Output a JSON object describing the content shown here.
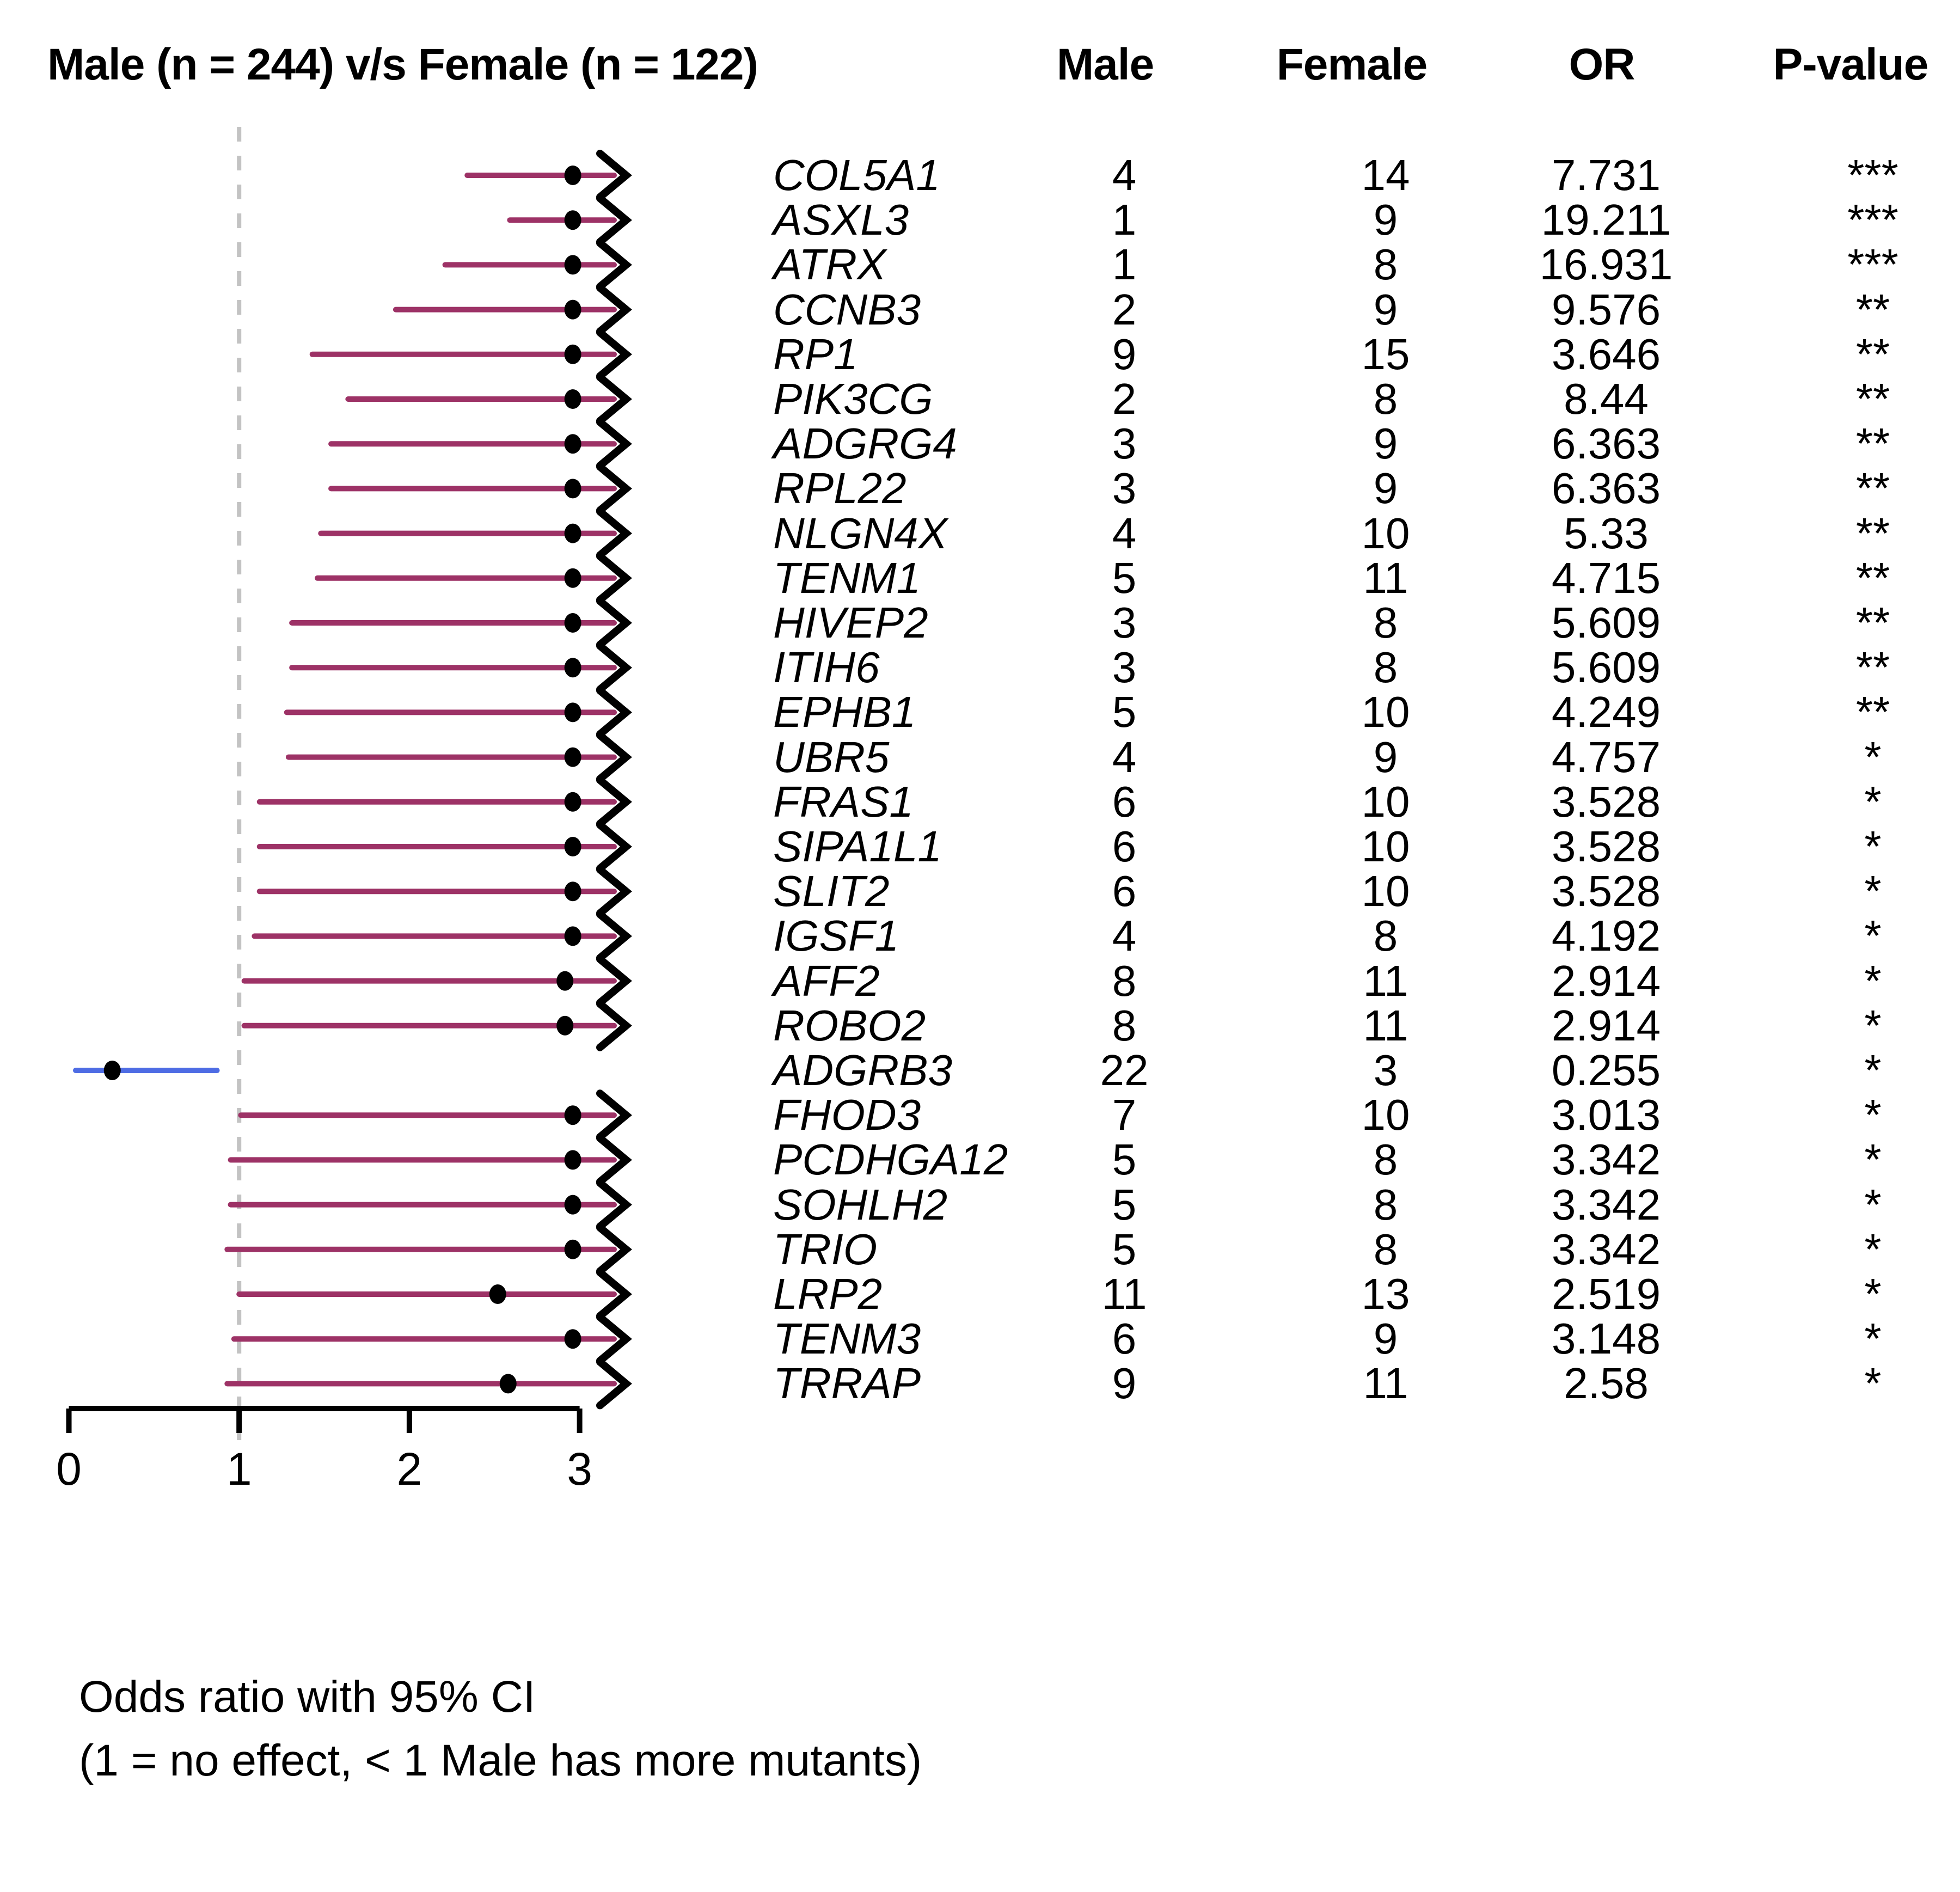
{
  "header": {
    "title": "Male (n = 244) v/s Female (n = 122)"
  },
  "table": {
    "headers": [
      "Male",
      "Female",
      "OR",
      "P-value"
    ]
  },
  "footnote": {
    "line1": "Odds ratio with 95% CI",
    "line2": "(1 = no effect, < 1 Male has more mutants)"
  },
  "colors": {
    "ci_line": "#9d3266",
    "adgrb3_line": "#4e6ce4",
    "reference_line": "#c3c3c3",
    "dot": "#000000",
    "axis": "#000000"
  },
  "chart_data": {
    "type": "scatter",
    "subtype": "forest-plot-odds-ratio",
    "title": "Male (n = 244) v/s Female (n = 122)",
    "xlabel": "Odds ratio with 95% CI",
    "x_axis": {
      "min": 0,
      "max": 3,
      "ticks": [
        0,
        1,
        2,
        3
      ],
      "reference_line_at": 1,
      "clip_max_display": 2.96
    },
    "legend": "dots = odds ratio (capped at right edge), lines = 95% CI, arrow = CI extends beyond 3",
    "rows": [
      {
        "gene": "COL5A1",
        "male": 4,
        "female": 14,
        "or": 7.731,
        "or_label": "7.731",
        "p": "***",
        "ci_low": 2.34,
        "ci_high": null,
        "clipped": true,
        "color": "crimson"
      },
      {
        "gene": "ASXL3",
        "male": 1,
        "female": 9,
        "or": 19.211,
        "or_label": "19.211",
        "p": "***",
        "ci_low": 2.59,
        "ci_high": null,
        "clipped": true,
        "color": "crimson"
      },
      {
        "gene": "ATRX",
        "male": 1,
        "female": 8,
        "or": 16.931,
        "or_label": "16.931",
        "p": "***",
        "ci_low": 2.21,
        "ci_high": null,
        "clipped": true,
        "color": "crimson"
      },
      {
        "gene": "CCNB3",
        "male": 2,
        "female": 9,
        "or": 9.576,
        "or_label": "9.576",
        "p": "**",
        "ci_low": 1.92,
        "ci_high": null,
        "clipped": true,
        "color": "crimson"
      },
      {
        "gene": "RP1",
        "male": 9,
        "female": 15,
        "or": 3.646,
        "or_label": "3.646",
        "p": "**",
        "ci_low": 1.43,
        "ci_high": null,
        "clipped": true,
        "color": "crimson"
      },
      {
        "gene": "PIK3CG",
        "male": 2,
        "female": 8,
        "or": 8.44,
        "or_label": "8.44",
        "p": "**",
        "ci_low": 1.64,
        "ci_high": null,
        "clipped": true,
        "color": "crimson"
      },
      {
        "gene": "ADGRG4",
        "male": 3,
        "female": 9,
        "or": 6.363,
        "or_label": "6.363",
        "p": "**",
        "ci_low": 1.54,
        "ci_high": null,
        "clipped": true,
        "color": "crimson"
      },
      {
        "gene": "RPL22",
        "male": 3,
        "female": 9,
        "or": 6.363,
        "or_label": "6.363",
        "p": "**",
        "ci_low": 1.54,
        "ci_high": null,
        "clipped": true,
        "color": "crimson"
      },
      {
        "gene": "NLGN4X",
        "male": 4,
        "female": 10,
        "or": 5.33,
        "or_label": "5.33",
        "p": "**",
        "ci_low": 1.48,
        "ci_high": null,
        "clipped": true,
        "color": "crimson"
      },
      {
        "gene": "TENM1",
        "male": 5,
        "female": 11,
        "or": 4.715,
        "or_label": "4.715",
        "p": "**",
        "ci_low": 1.46,
        "ci_high": null,
        "clipped": true,
        "color": "crimson"
      },
      {
        "gene": "HIVEP2",
        "male": 3,
        "female": 8,
        "or": 5.609,
        "or_label": "5.609",
        "p": "**",
        "ci_low": 1.31,
        "ci_high": null,
        "clipped": true,
        "color": "crimson"
      },
      {
        "gene": "ITIH6",
        "male": 3,
        "female": 8,
        "or": 5.609,
        "or_label": "5.609",
        "p": "**",
        "ci_low": 1.31,
        "ci_high": null,
        "clipped": true,
        "color": "crimson"
      },
      {
        "gene": "EPHB1",
        "male": 5,
        "female": 10,
        "or": 4.249,
        "or_label": "4.249",
        "p": "**",
        "ci_low": 1.28,
        "ci_high": null,
        "clipped": true,
        "color": "crimson"
      },
      {
        "gene": "UBR5",
        "male": 4,
        "female": 9,
        "or": 4.757,
        "or_label": "4.757",
        "p": "*",
        "ci_low": 1.29,
        "ci_high": null,
        "clipped": true,
        "color": "crimson"
      },
      {
        "gene": "FRAS1",
        "male": 6,
        "female": 10,
        "or": 3.528,
        "or_label": "3.528",
        "p": "*",
        "ci_low": 1.12,
        "ci_high": null,
        "clipped": true,
        "color": "crimson"
      },
      {
        "gene": "SIPA1L1",
        "male": 6,
        "female": 10,
        "or": 3.528,
        "or_label": "3.528",
        "p": "*",
        "ci_low": 1.12,
        "ci_high": null,
        "clipped": true,
        "color": "crimson"
      },
      {
        "gene": "SLIT2",
        "male": 6,
        "female": 10,
        "or": 3.528,
        "or_label": "3.528",
        "p": "*",
        "ci_low": 1.12,
        "ci_high": null,
        "clipped": true,
        "color": "crimson"
      },
      {
        "gene": "IGSF1",
        "male": 4,
        "female": 8,
        "or": 4.192,
        "or_label": "4.192",
        "p": "*",
        "ci_low": 1.09,
        "ci_high": null,
        "clipped": true,
        "color": "crimson"
      },
      {
        "gene": "AFF2",
        "male": 8,
        "female": 11,
        "or": 2.914,
        "or_label": "2.914",
        "p": "*",
        "ci_low": 1.03,
        "ci_high": null,
        "clipped": true,
        "color": "crimson"
      },
      {
        "gene": "ROBO2",
        "male": 8,
        "female": 11,
        "or": 2.914,
        "or_label": "2.914",
        "p": "*",
        "ci_low": 1.03,
        "ci_high": null,
        "clipped": true,
        "color": "crimson"
      },
      {
        "gene": "ADGRB3",
        "male": 22,
        "female": 3,
        "or": 0.255,
        "or_label": "0.255",
        "p": "*",
        "ci_low": 0.04,
        "ci_high": 0.87,
        "clipped": false,
        "color": "blue"
      },
      {
        "gene": "FHOD3",
        "male": 7,
        "female": 10,
        "or": 3.013,
        "or_label": "3.013",
        "p": "*",
        "ci_low": 1.01,
        "ci_high": null,
        "clipped": true,
        "color": "crimson"
      },
      {
        "gene": "PCDHGA12",
        "male": 5,
        "female": 8,
        "or": 3.342,
        "or_label": "3.342",
        "p": "*",
        "ci_low": 0.95,
        "ci_high": null,
        "clipped": true,
        "color": "crimson"
      },
      {
        "gene": "SOHLH2",
        "male": 5,
        "female": 8,
        "or": 3.342,
        "or_label": "3.342",
        "p": "*",
        "ci_low": 0.95,
        "ci_high": null,
        "clipped": true,
        "color": "crimson"
      },
      {
        "gene": "TRIO",
        "male": 5,
        "female": 8,
        "or": 3.342,
        "or_label": "3.342",
        "p": "*",
        "ci_low": 0.93,
        "ci_high": null,
        "clipped": true,
        "color": "crimson"
      },
      {
        "gene": "LRP2",
        "male": 11,
        "female": 13,
        "or": 2.519,
        "or_label": "2.519",
        "p": "*",
        "ci_low": 1.0,
        "ci_high": null,
        "clipped": true,
        "color": "crimson"
      },
      {
        "gene": "TENM3",
        "male": 6,
        "female": 9,
        "or": 3.148,
        "or_label": "3.148",
        "p": "*",
        "ci_low": 0.97,
        "ci_high": null,
        "clipped": true,
        "color": "crimson"
      },
      {
        "gene": "TRRAP",
        "male": 9,
        "female": 11,
        "or": 2.58,
        "or_label": "2.58",
        "p": "*",
        "ci_low": 0.93,
        "ci_high": null,
        "clipped": true,
        "color": "crimson"
      }
    ]
  }
}
